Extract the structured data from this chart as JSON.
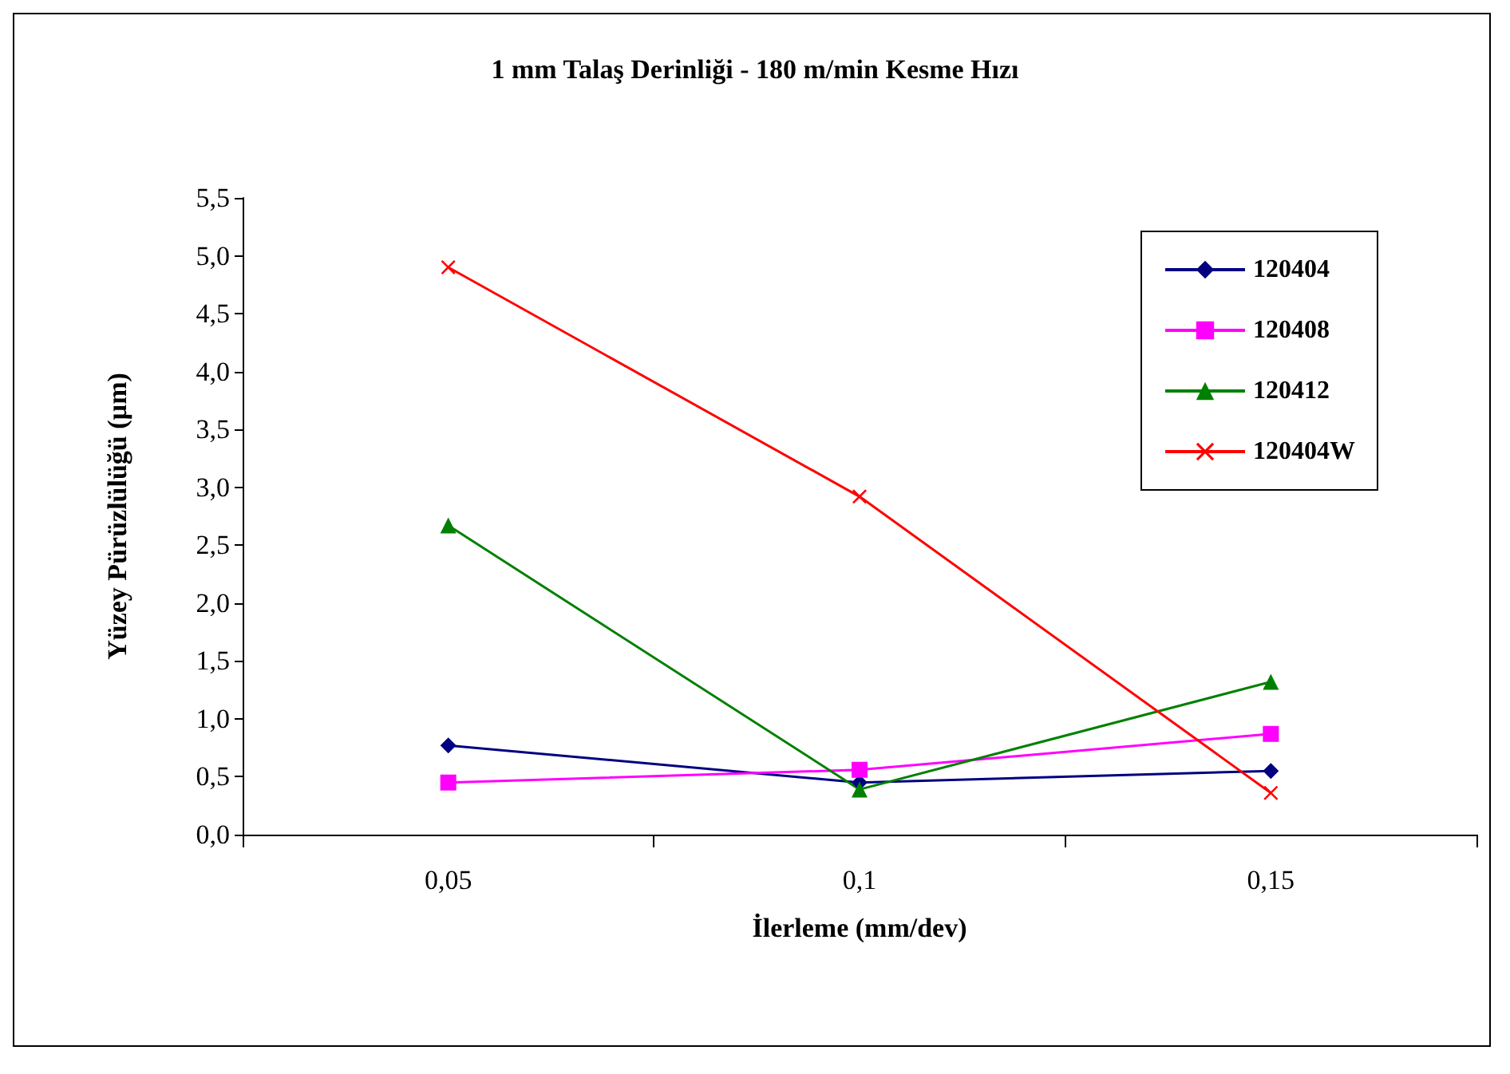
{
  "chart_data": {
    "type": "line",
    "title": "1 mm Talaş Derinliği - 180 m/min Kesme Hızı",
    "xlabel": "İlerleme (mm/dev)",
    "ylabel": "Yüzey Pürüzlülüğü (µm)",
    "categories": [
      "0,05",
      "0,1",
      "0,15"
    ],
    "series": [
      {
        "name": "120404",
        "color": "#000080",
        "marker": "diamond",
        "values": [
          0.77,
          0.45,
          0.55
        ]
      },
      {
        "name": "120408",
        "color": "#ff00ff",
        "marker": "square",
        "values": [
          0.45,
          0.56,
          0.87
        ]
      },
      {
        "name": "120412",
        "color": "#008000",
        "marker": "triangle",
        "values": [
          2.67,
          0.39,
          1.32
        ]
      },
      {
        "name": "120404W",
        "color": "#ff0000",
        "marker": "cross",
        "values": [
          4.9,
          2.92,
          0.36
        ]
      }
    ],
    "ylim": [
      0,
      5.5
    ],
    "yticks": [
      {
        "value": 0,
        "label": "0,0"
      },
      {
        "value": 0.5,
        "label": "0,5"
      },
      {
        "value": 1,
        "label": "1,0"
      },
      {
        "value": 1.5,
        "label": "1,5"
      },
      {
        "value": 2,
        "label": "2,0"
      },
      {
        "value": 2.5,
        "label": "2,5"
      },
      {
        "value": 3,
        "label": "3,0"
      },
      {
        "value": 3.5,
        "label": "3,5"
      },
      {
        "value": 4,
        "label": "4,0"
      },
      {
        "value": 4.5,
        "label": "4,5"
      },
      {
        "value": 5,
        "label": "5,0"
      },
      {
        "value": 5.5,
        "label": "5,5"
      }
    ],
    "grid": false,
    "legend": "top right"
  }
}
